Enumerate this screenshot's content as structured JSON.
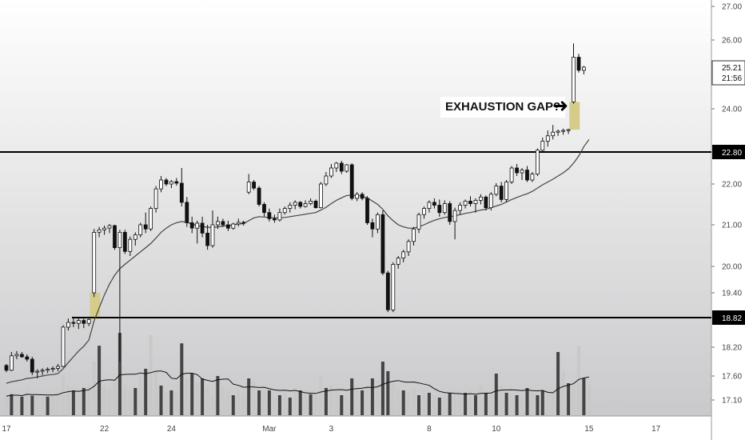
{
  "chart_data": {
    "type": "candlestick",
    "y_axis": {
      "ticks": [
        "27.00",
        "26.00",
        "24.00",
        "22.00",
        "21.00",
        "20.00",
        "19.40",
        "18.20",
        "17.60",
        "17.10"
      ],
      "tick_values": [
        27.0,
        26.0,
        24.0,
        22.0,
        21.0,
        20.0,
        19.4,
        18.2,
        17.6,
        17.1
      ]
    },
    "x_axis": {
      "ticks": [
        "17",
        "22",
        "24",
        "Mar",
        "3",
        "8",
        "10",
        "15",
        "17"
      ]
    },
    "last_price": {
      "label": "25.21",
      "sublabel": "21:56",
      "value": 25.21
    },
    "levels": [
      {
        "label": "22.80",
        "value": 22.8
      },
      {
        "label": "18.82",
        "value": 18.82
      }
    ],
    "annotation": {
      "text": "EXHAUSTION GAP?",
      "arrow": "➜"
    },
    "colors": {
      "background": "#e9e9ea",
      "up_candle": "#ffffff",
      "down_candle": "#111111",
      "moving_average": "#444444",
      "gap_highlight": "#d6cc8a",
      "volume_up": "#c8c8c8",
      "volume_down": "#444444",
      "level_line": "#000000"
    },
    "candles": [
      [
        17.82,
        17.85,
        17.68,
        17.72
      ],
      [
        17.72,
        18.1,
        17.7,
        18.02
      ],
      [
        18.02,
        18.12,
        17.95,
        18.05
      ],
      [
        18.05,
        18.1,
        17.98,
        18.0
      ],
      [
        18.0,
        18.05,
        17.9,
        17.95
      ],
      [
        17.95,
        18.0,
        17.62,
        17.68
      ],
      [
        17.68,
        17.74,
        17.55,
        17.7
      ],
      [
        17.7,
        17.76,
        17.62,
        17.72
      ],
      [
        17.72,
        17.78,
        17.66,
        17.74
      ],
      [
        17.74,
        17.8,
        17.68,
        17.76
      ],
      [
        17.76,
        17.85,
        17.7,
        17.8
      ],
      [
        17.8,
        18.66,
        17.78,
        18.62
      ],
      [
        18.62,
        18.8,
        18.55,
        18.72
      ],
      [
        18.72,
        18.84,
        18.62,
        18.7
      ],
      [
        18.7,
        18.82,
        18.58,
        18.76
      ],
      [
        18.76,
        18.84,
        18.6,
        18.7
      ],
      [
        18.7,
        18.8,
        18.64,
        18.78
      ],
      [
        19.4,
        20.9,
        19.3,
        20.82
      ],
      [
        20.82,
        20.95,
        20.7,
        20.88
      ],
      [
        20.88,
        20.98,
        20.76,
        20.92
      ],
      [
        20.92,
        21.02,
        20.8,
        20.98
      ],
      [
        20.98,
        21.0,
        20.4,
        20.45
      ],
      [
        20.45,
        20.88,
        17.9,
        20.82
      ],
      [
        20.82,
        20.88,
        20.3,
        20.36
      ],
      [
        20.36,
        20.72,
        20.25,
        20.65
      ],
      [
        20.65,
        20.82,
        20.5,
        20.76
      ],
      [
        20.76,
        21.05,
        20.7,
        21.0
      ],
      [
        21.0,
        21.3,
        20.8,
        20.9
      ],
      [
        20.9,
        21.45,
        20.85,
        21.4
      ],
      [
        21.4,
        21.95,
        21.3,
        21.88
      ],
      [
        21.88,
        22.2,
        21.8,
        22.1
      ],
      [
        22.1,
        22.15,
        21.95,
        22.0
      ],
      [
        22.0,
        22.1,
        21.9,
        22.06
      ],
      [
        22.06,
        22.15,
        21.96,
        22.02
      ],
      [
        22.02,
        22.4,
        21.45,
        21.55
      ],
      [
        21.55,
        21.68,
        20.95,
        21.05
      ],
      [
        21.05,
        21.2,
        20.8,
        20.92
      ],
      [
        20.92,
        21.1,
        20.55,
        21.04
      ],
      [
        21.04,
        21.2,
        20.7,
        20.8
      ],
      [
        20.8,
        21.0,
        20.4,
        20.5
      ],
      [
        20.5,
        21.35,
        20.45,
        21.0
      ],
      [
        21.0,
        21.2,
        20.9,
        21.08
      ],
      [
        21.08,
        21.15,
        20.95,
        21.0
      ],
      [
        21.0,
        21.1,
        20.85,
        20.92
      ],
      [
        20.92,
        21.05,
        20.88,
        21.02
      ],
      [
        21.02,
        21.15,
        20.96,
        21.06
      ],
      [
        21.06,
        21.1,
        20.98,
        21.04
      ],
      [
        21.8,
        22.25,
        21.75,
        22.05
      ],
      [
        22.05,
        22.1,
        21.85,
        21.9
      ],
      [
        21.9,
        21.95,
        21.45,
        21.5
      ],
      [
        21.5,
        21.55,
        21.2,
        21.3
      ],
      [
        21.3,
        21.4,
        21.08,
        21.15
      ],
      [
        21.15,
        21.25,
        21.05,
        21.12
      ],
      [
        21.12,
        21.4,
        21.08,
        21.3
      ],
      [
        21.3,
        21.45,
        21.25,
        21.4
      ],
      [
        21.4,
        21.55,
        21.3,
        21.48
      ],
      [
        21.48,
        21.6,
        21.38,
        21.55
      ],
      [
        21.55,
        21.58,
        21.4,
        21.45
      ],
      [
        21.45,
        21.6,
        21.42,
        21.52
      ],
      [
        21.52,
        21.65,
        21.48,
        21.58
      ],
      [
        21.58,
        21.62,
        21.4,
        21.42
      ],
      [
        21.42,
        22.05,
        21.4,
        22.0
      ],
      [
        22.0,
        22.3,
        21.95,
        22.2
      ],
      [
        22.2,
        22.5,
        22.15,
        22.4
      ],
      [
        22.4,
        22.55,
        22.3,
        22.52
      ],
      [
        22.52,
        22.58,
        22.25,
        22.32
      ],
      [
        22.32,
        22.5,
        22.28,
        22.48
      ],
      [
        22.48,
        22.52,
        21.6,
        21.65
      ],
      [
        21.65,
        21.8,
        21.58,
        21.75
      ],
      [
        21.75,
        21.8,
        21.6,
        21.65
      ],
      [
        21.65,
        21.7,
        21.0,
        21.05
      ],
      [
        21.05,
        21.15,
        20.7,
        20.9
      ],
      [
        20.9,
        21.3,
        20.8,
        21.25
      ],
      [
        21.25,
        21.35,
        19.8,
        19.85
      ],
      [
        19.85,
        19.9,
        18.95,
        19.0
      ],
      [
        19.0,
        20.1,
        18.95,
        20.05
      ],
      [
        20.05,
        20.25,
        19.95,
        20.2
      ],
      [
        20.2,
        20.4,
        20.1,
        20.35
      ],
      [
        20.35,
        20.65,
        20.25,
        20.6
      ],
      [
        20.6,
        20.95,
        20.5,
        20.9
      ],
      [
        20.9,
        21.3,
        20.8,
        21.25
      ],
      [
        21.25,
        21.45,
        21.15,
        21.4
      ],
      [
        21.4,
        21.6,
        21.3,
        21.55
      ],
      [
        21.55,
        21.65,
        21.4,
        21.48
      ],
      [
        21.48,
        21.62,
        21.2,
        21.3
      ],
      [
        21.3,
        21.6,
        21.25,
        21.52
      ],
      [
        21.52,
        21.58,
        21.0,
        21.08
      ],
      [
        21.08,
        21.42,
        20.65,
        21.35
      ],
      [
        21.35,
        21.55,
        21.25,
        21.48
      ],
      [
        21.48,
        21.62,
        21.4,
        21.58
      ],
      [
        21.58,
        21.7,
        21.45,
        21.52
      ],
      [
        21.52,
        21.65,
        21.3,
        21.6
      ],
      [
        21.6,
        21.75,
        21.5,
        21.68
      ],
      [
        21.68,
        21.72,
        21.35,
        21.42
      ],
      [
        21.42,
        21.8,
        21.35,
        21.75
      ],
      [
        21.75,
        22.02,
        21.7,
        21.95
      ],
      [
        21.95,
        22.05,
        21.55,
        21.62
      ],
      [
        21.62,
        22.1,
        21.55,
        22.05
      ],
      [
        22.05,
        22.45,
        22.0,
        22.4
      ],
      [
        22.4,
        22.5,
        22.2,
        22.28
      ],
      [
        22.28,
        22.4,
        22.1,
        22.35
      ],
      [
        22.35,
        22.45,
        22.05,
        22.1
      ],
      [
        22.1,
        22.3,
        22.05,
        22.25
      ],
      [
        22.25,
        22.9,
        22.2,
        22.85
      ],
      [
        22.85,
        23.2,
        22.8,
        23.1
      ],
      [
        23.1,
        23.4,
        22.95,
        23.25
      ],
      [
        23.25,
        23.55,
        23.15,
        23.35
      ],
      [
        23.35,
        23.42,
        23.25,
        23.38
      ],
      [
        23.38,
        23.45,
        23.28,
        23.4
      ],
      [
        23.4,
        23.45,
        23.3,
        23.42
      ],
      [
        24.2,
        25.9,
        24.15,
        25.5
      ],
      [
        25.5,
        25.6,
        25.05,
        25.12
      ],
      [
        25.12,
        25.25,
        25.0,
        25.21
      ]
    ],
    "moving_average": [
      17.45,
      17.48,
      17.5,
      17.52,
      17.55,
      17.56,
      17.58,
      17.6,
      17.62,
      17.63,
      17.65,
      17.75,
      17.88,
      18.0,
      18.12,
      18.22,
      18.35,
      18.75,
      19.05,
      19.35,
      19.6,
      19.8,
      19.95,
      20.05,
      20.15,
      20.25,
      20.35,
      20.45,
      20.55,
      20.68,
      20.82,
      20.92,
      21.0,
      21.05,
      21.08,
      21.06,
      21.02,
      20.98,
      20.96,
      20.94,
      20.94,
      20.95,
      20.97,
      20.98,
      21.0,
      21.02,
      21.03,
      21.1,
      21.17,
      21.2,
      21.19,
      21.18,
      21.17,
      21.17,
      21.18,
      21.2,
      21.22,
      21.24,
      21.26,
      21.28,
      21.3,
      21.36,
      21.43,
      21.52,
      21.6,
      21.66,
      21.72,
      21.72,
      21.72,
      21.7,
      21.66,
      21.58,
      21.5,
      21.38,
      21.22,
      21.1,
      21.0,
      20.95,
      20.92,
      20.92,
      20.95,
      21.0,
      21.06,
      21.11,
      21.15,
      21.18,
      21.2,
      21.22,
      21.25,
      21.28,
      21.3,
      21.33,
      21.36,
      21.38,
      21.42,
      21.46,
      21.5,
      21.56,
      21.62,
      21.67,
      21.72,
      21.76,
      21.82,
      21.9,
      21.98,
      22.05,
      22.12,
      22.2,
      22.28,
      22.38,
      22.52,
      22.7,
      22.95,
      23.15
    ],
    "volume_scale": [
      17.0,
      18.5
    ],
    "volumes": [
      [
        17.18,
        0
      ],
      [
        17.22,
        1
      ],
      [
        17.2,
        0
      ],
      [
        17.17,
        1
      ],
      [
        17.32,
        0
      ],
      [
        17.19,
        1
      ],
      [
        17.21,
        0
      ],
      [
        17.18,
        0
      ],
      [
        17.17,
        1
      ],
      [
        17.2,
        0
      ],
      [
        17.26,
        0
      ],
      [
        17.63,
        0
      ],
      [
        17.4,
        0
      ],
      [
        17.3,
        1
      ],
      [
        17.25,
        0
      ],
      [
        17.35,
        1
      ],
      [
        17.4,
        0
      ],
      [
        17.9,
        0
      ],
      [
        18.23,
        1
      ],
      [
        17.4,
        0
      ],
      [
        17.35,
        0
      ],
      [
        17.55,
        0
      ],
      [
        18.5,
        1
      ],
      [
        17.4,
        0
      ],
      [
        17.3,
        0
      ],
      [
        17.35,
        1
      ],
      [
        17.65,
        0
      ],
      [
        17.75,
        1
      ],
      [
        18.45,
        0
      ],
      [
        17.7,
        0
      ],
      [
        17.4,
        1
      ],
      [
        17.25,
        0
      ],
      [
        17.3,
        1
      ],
      [
        17.25,
        0
      ],
      [
        18.28,
        1
      ],
      [
        17.55,
        0
      ],
      [
        17.65,
        1
      ],
      [
        17.45,
        0
      ],
      [
        17.55,
        1
      ],
      [
        17.4,
        0
      ],
      [
        17.2,
        0
      ],
      [
        17.6,
        1
      ],
      [
        17.4,
        0
      ],
      [
        17.3,
        0
      ],
      [
        17.2,
        1
      ],
      [
        17.3,
        0
      ],
      [
        17.25,
        0
      ],
      [
        17.55,
        1
      ],
      [
        17.5,
        0
      ],
      [
        17.3,
        1
      ],
      [
        17.25,
        0
      ],
      [
        17.3,
        1
      ],
      [
        17.15,
        0
      ],
      [
        17.2,
        1
      ],
      [
        17.25,
        0
      ],
      [
        17.15,
        1
      ],
      [
        17.35,
        0
      ],
      [
        17.3,
        1
      ],
      [
        17.25,
        0
      ],
      [
        17.22,
        1
      ],
      [
        17.2,
        0
      ],
      [
        17.6,
        0
      ],
      [
        17.35,
        1
      ],
      [
        17.4,
        0
      ],
      [
        17.3,
        0
      ],
      [
        17.2,
        1
      ],
      [
        17.2,
        0
      ],
      [
        17.55,
        1
      ],
      [
        17.35,
        0
      ],
      [
        17.3,
        1
      ],
      [
        17.4,
        0
      ],
      [
        17.55,
        1
      ],
      [
        17.5,
        0
      ],
      [
        17.9,
        1
      ],
      [
        17.7,
        1
      ],
      [
        17.45,
        0
      ],
      [
        17.35,
        0
      ],
      [
        17.3,
        1
      ],
      [
        17.25,
        0
      ],
      [
        17.35,
        0
      ],
      [
        17.2,
        1
      ],
      [
        17.3,
        0
      ],
      [
        17.25,
        1
      ],
      [
        17.2,
        0
      ],
      [
        17.15,
        1
      ],
      [
        17.2,
        0
      ],
      [
        17.25,
        1
      ],
      [
        17.22,
        0
      ],
      [
        17.2,
        0
      ],
      [
        17.25,
        1
      ],
      [
        17.3,
        0
      ],
      [
        17.2,
        1
      ],
      [
        17.4,
        0
      ],
      [
        17.25,
        1
      ],
      [
        17.2,
        0
      ],
      [
        17.65,
        1
      ],
      [
        17.4,
        0
      ],
      [
        17.25,
        1
      ],
      [
        17.22,
        0
      ],
      [
        17.2,
        1
      ],
      [
        17.18,
        0
      ],
      [
        17.35,
        1
      ],
      [
        17.25,
        0
      ],
      [
        17.2,
        1
      ],
      [
        17.3,
        1
      ],
      [
        17.25,
        0
      ],
      [
        17.3,
        0
      ],
      [
        18.1,
        1
      ],
      [
        17.7,
        0
      ],
      [
        17.45,
        1
      ],
      [
        17.5,
        0
      ],
      [
        18.23,
        0
      ],
      [
        17.55,
        1
      ],
      [
        17.4,
        0
      ]
    ]
  }
}
